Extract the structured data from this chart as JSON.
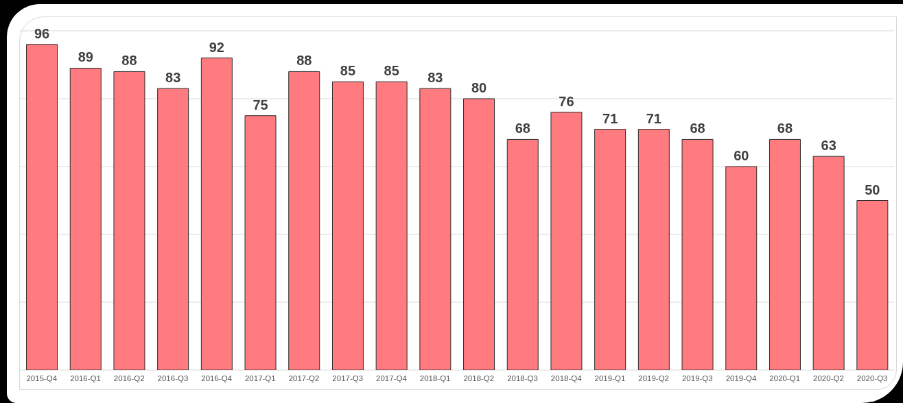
{
  "chart_data": {
    "type": "bar",
    "categories": [
      "2015-Q4",
      "2016-Q1",
      "2016-Q2",
      "2016-Q3",
      "2016-Q4",
      "2017-Q1",
      "2017-Q2",
      "2017-Q3",
      "2017-Q4",
      "2018-Q1",
      "2018-Q2",
      "2018-Q3",
      "2018-Q4",
      "2019-Q1",
      "2019-Q2",
      "2019-Q3",
      "2019-Q4",
      "2020-Q1",
      "2020-Q2",
      "2020-Q3"
    ],
    "values": [
      96,
      89,
      88,
      83,
      92,
      75,
      88,
      85,
      85,
      83,
      80,
      68,
      76,
      71,
      71,
      68,
      60,
      68,
      63,
      50
    ],
    "color": "#ff7b7f",
    "ylim": [
      0,
      100
    ],
    "yticks": [
      0,
      20,
      40,
      60,
      80,
      100
    ],
    "grid": "y",
    "tick_labels": "x",
    "data_labels": true
  }
}
